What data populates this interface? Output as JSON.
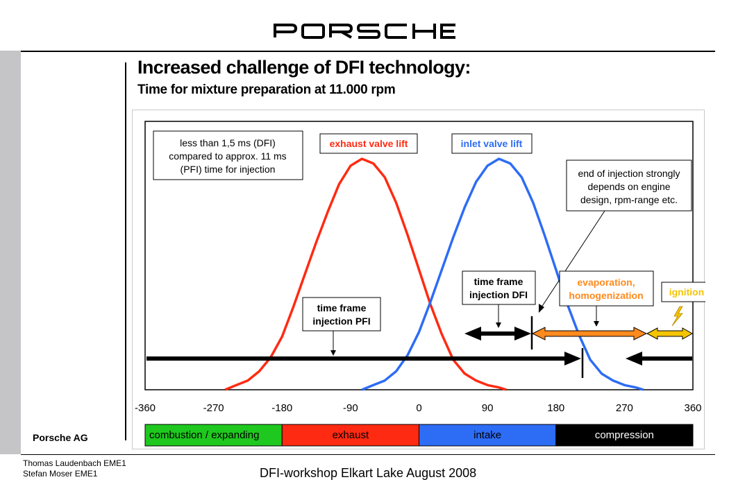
{
  "brand": {
    "logo_text": "PORSCHE"
  },
  "slide": {
    "title": "Increased challenge of DFI technology:",
    "subtitle": "Time for mixture preparation at 11.000 rpm",
    "company": "Porsche AG",
    "authors": [
      "Thomas Laudenbach EME1",
      "Stefan Moser EME1"
    ],
    "footer": "DFI-workshop Elkart Lake August 2008"
  },
  "colors": {
    "exhaust": "#ff2a12",
    "inlet": "#2d6cf5",
    "orange": "#ff8a1e",
    "yellow": "#f5c400",
    "green": "#1ec81e",
    "black": "#000000"
  },
  "chart_data": {
    "type": "line",
    "xlim": [
      -360,
      360
    ],
    "ylim": [
      0,
      1
    ],
    "x_ticks": [
      "-360",
      "-270",
      "-180",
      "-90",
      "0",
      "90",
      "180",
      "270",
      "360"
    ],
    "grid": false,
    "series": [
      {
        "name": "exhaust valve lift",
        "x": [
          -255,
          -240,
          -225,
          -210,
          -195,
          -180,
          -165,
          -150,
          -135,
          -120,
          -105,
          -90,
          -75,
          -60,
          -45,
          -30,
          -15,
          0,
          15,
          30,
          45,
          60,
          75,
          90,
          105,
          115
        ],
        "y": [
          0,
          0.02,
          0.04,
          0.08,
          0.14,
          0.23,
          0.36,
          0.5,
          0.64,
          0.77,
          0.89,
          0.97,
          1.0,
          0.98,
          0.92,
          0.81,
          0.67,
          0.52,
          0.37,
          0.24,
          0.13,
          0.07,
          0.04,
          0.02,
          0.01,
          0
        ]
      },
      {
        "name": "inlet valve lift",
        "x": [
          -75,
          -60,
          -45,
          -30,
          -15,
          0,
          15,
          30,
          45,
          60,
          75,
          90,
          105,
          120,
          135,
          150,
          165,
          180,
          195,
          210,
          225,
          240,
          255,
          270,
          285,
          295
        ],
        "y": [
          0,
          0.02,
          0.04,
          0.08,
          0.15,
          0.25,
          0.38,
          0.52,
          0.66,
          0.79,
          0.9,
          0.97,
          1.0,
          0.98,
          0.92,
          0.81,
          0.67,
          0.52,
          0.37,
          0.24,
          0.13,
          0.07,
          0.04,
          0.02,
          0.01,
          0
        ]
      }
    ],
    "time_frames": [
      {
        "name": "time frame injection PFI",
        "from": 360,
        "to": 210
      },
      {
        "name": "time frame injection DFI",
        "from": 60,
        "to": 145
      },
      {
        "name": "evaporation, homogenization",
        "from": 145,
        "to": 295
      },
      {
        "name": "ignition",
        "from": 295,
        "to": 355
      }
    ],
    "phases": [
      {
        "label": "combustion / expanding",
        "from": -360,
        "to": -180,
        "color": "#1ec81e"
      },
      {
        "label": "exhaust",
        "from": -180,
        "to": 0,
        "color": "#ff2a12"
      },
      {
        "label": "intake",
        "from": 0,
        "to": 180,
        "color": "#2d6cf5"
      },
      {
        "label": "compression",
        "from": 180,
        "to": 360,
        "color": "#000000"
      }
    ],
    "annotations": {
      "pfi_vs_dfi": [
        "less than 1,5 ms (DFI)",
        "compared to approx. 11 ms",
        "(PFI) time for injection"
      ],
      "exhaust_label": "exhaust valve lift",
      "inlet_label": "inlet valve lift",
      "end_of_injection": [
        "end of injection strongly",
        "depends on engine",
        "design, rpm-range etc."
      ],
      "dfi_frame": [
        "time frame",
        "injection DFI"
      ],
      "pfi_frame": [
        "time frame",
        "injection PFI"
      ],
      "evaporation": [
        "evaporation,",
        "homogenization"
      ],
      "ignition": "ignition"
    }
  }
}
